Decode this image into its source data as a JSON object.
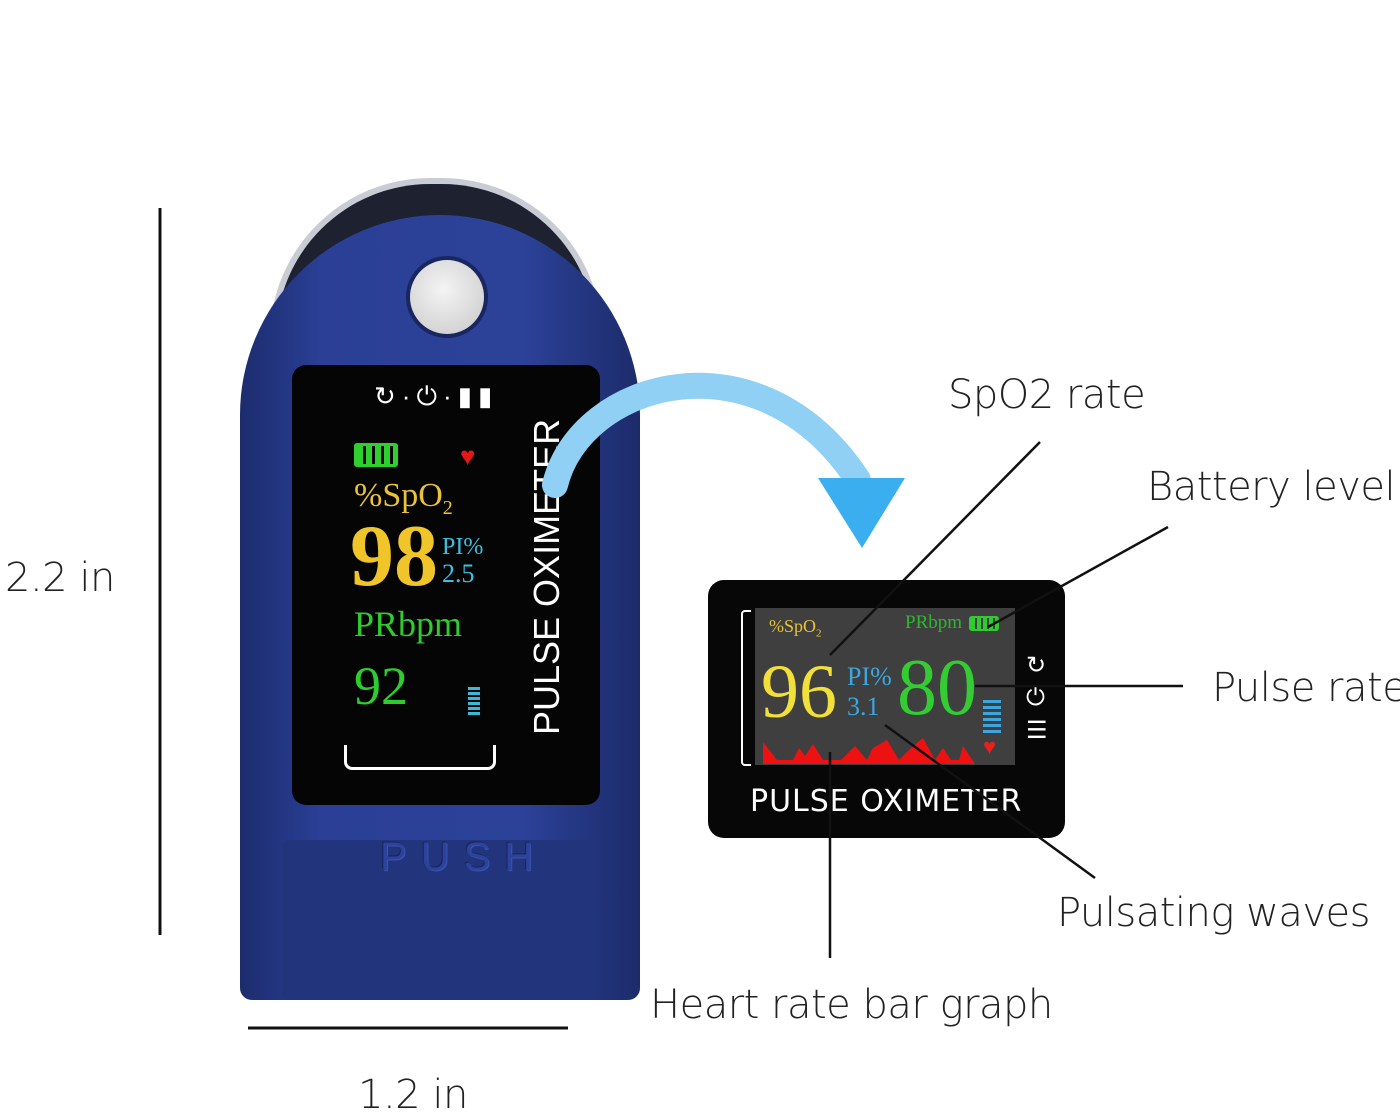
{
  "dimensions": {
    "height_label": "2.2 in",
    "width_label": "1.2 in"
  },
  "device": {
    "brand_text": "PULSE OXIMETER",
    "push_text": "PUSH",
    "body_color": "#2a3f95",
    "display": {
      "spo2_label": "%SpO",
      "spo2_sub": "2",
      "spo2_value": "98",
      "pi_label": "PI%",
      "pi_value": "2.5",
      "pr_label": "PRbpm",
      "pr_value": "92"
    }
  },
  "zoomed_display": {
    "spo2_label": "%SpO",
    "spo2_sub": "2",
    "spo2_value": "96",
    "pi_label": "PI%",
    "pi_value": "3.1",
    "pr_label": "PRbpm",
    "pr_value": "80",
    "brand_text": "PULSE OXIMETER"
  },
  "colors": {
    "spo2": "#f2d03a",
    "pi": "#3aa7e0",
    "pr": "#33cc33",
    "wave": "#ee1111",
    "arrow": "#4ab3ee"
  },
  "callouts": {
    "spo2_rate": "SpO2 rate",
    "battery_level": "Battery level",
    "pulse_rate": "Pulse rate",
    "pulsating_waves": "Pulsating waves",
    "heart_rate_bar_graph": "Heart rate bar graph"
  }
}
